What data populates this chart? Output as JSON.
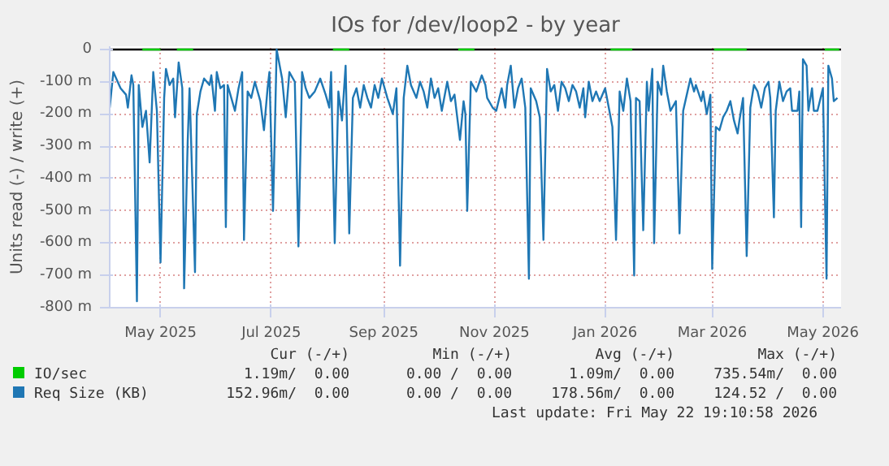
{
  "chart_data": {
    "type": "line",
    "title": "IOs for /dev/loop2 - by year",
    "ylabel": "Units read (-) / write (+)",
    "xlim": [
      "2025-04-03",
      "2026-05-11"
    ],
    "xticks": [
      {
        "value": "2025-05-01",
        "label": "May 2025"
      },
      {
        "value": "2025-07-01",
        "label": "Jul 2025"
      },
      {
        "value": "2025-09-01",
        "label": "Sep 2025"
      },
      {
        "value": "2025-11-01",
        "label": "Nov 2025"
      },
      {
        "value": "2026-01-01",
        "label": "Jan 2026"
      },
      {
        "value": "2026-03-01",
        "label": "Mar 2026"
      },
      {
        "value": "2026-05-01",
        "label": "May 2026"
      }
    ],
    "ylim": [
      -800,
      10
    ],
    "yticks": [
      {
        "value": 0,
        "label": "0"
      },
      {
        "value": -100,
        "label": "-100 m"
      },
      {
        "value": -200,
        "label": "-200 m"
      },
      {
        "value": -300,
        "label": "-300 m"
      },
      {
        "value": -400,
        "label": "-400 m"
      },
      {
        "value": -500,
        "label": "-500 m"
      },
      {
        "value": -600,
        "label": "-600 m"
      },
      {
        "value": -700,
        "label": "-700 m"
      },
      {
        "value": -800,
        "label": "-800 m"
      }
    ],
    "grid": true,
    "legend": "bottom",
    "ref_lines": [
      {
        "axis": "y",
        "value": 0,
        "color": "#000000"
      }
    ],
    "series": [
      {
        "name": "IO/sec",
        "color": "#00cc00",
        "x": [
          "2025-04-21",
          "2025-05-01",
          "2025-05-07",
          "2025-05-10",
          "2025-05-19",
          "2025-06-30",
          "2025-08-04",
          "2025-08-13",
          "2025-09-30",
          "2025-10-12",
          "2025-10-21",
          "2025-11-30",
          "2026-01-04",
          "2026-01-16",
          "2026-02-10",
          "2026-03-02",
          "2026-03-20",
          "2026-04-20",
          "2026-05-02",
          "2026-05-10"
        ],
        "values": [
          0,
          0,
          null,
          0,
          0,
          null,
          0,
          0,
          null,
          0,
          0,
          null,
          0,
          0,
          null,
          0,
          0,
          null,
          0,
          0
        ]
      },
      {
        "name": "Req Size (KB)",
        "color": "#1f77b4",
        "x": [
          "2025-04-03",
          "2025-04-05",
          "2025-04-09",
          "2025-04-12",
          "2025-04-13",
          "2025-04-15",
          "2025-04-16",
          "2025-04-18",
          "2025-04-19",
          "2025-04-21",
          "2025-04-23",
          "2025-04-25",
          "2025-04-27",
          "2025-04-29",
          "2025-05-01",
          "2025-05-03",
          "2025-05-04",
          "2025-05-06",
          "2025-05-08",
          "2025-05-09",
          "2025-05-11",
          "2025-05-13",
          "2025-05-14",
          "2025-05-16",
          "2025-05-17",
          "2025-05-20",
          "2025-05-21",
          "2025-05-23",
          "2025-05-25",
          "2025-05-28",
          "2025-05-29",
          "2025-05-31",
          "2025-06-01",
          "2025-06-03",
          "2025-06-05",
          "2025-06-06",
          "2025-06-07",
          "2025-06-09",
          "2025-06-11",
          "2025-06-13",
          "2025-06-15",
          "2025-06-16",
          "2025-06-18",
          "2025-06-20",
          "2025-06-22",
          "2025-06-25",
          "2025-06-27",
          "2025-06-29",
          "2025-06-30",
          "2025-07-02",
          "2025-07-04",
          "2025-07-07",
          "2025-07-09",
          "2025-07-11",
          "2025-07-14",
          "2025-07-16",
          "2025-07-18",
          "2025-07-20",
          "2025-07-22",
          "2025-07-25",
          "2025-07-28",
          "2025-07-31",
          "2025-08-02",
          "2025-08-03",
          "2025-08-05",
          "2025-08-07",
          "2025-08-09",
          "2025-08-11",
          "2025-08-13",
          "2025-08-15",
          "2025-08-17",
          "2025-08-19",
          "2025-08-21",
          "2025-08-23",
          "2025-08-25",
          "2025-08-27",
          "2025-08-29",
          "2025-08-31",
          "2025-09-03",
          "2025-09-06",
          "2025-09-08",
          "2025-09-10",
          "2025-09-12",
          "2025-09-14",
          "2025-09-16",
          "2025-09-19",
          "2025-09-21",
          "2025-09-23",
          "2025-09-25",
          "2025-09-27",
          "2025-09-29",
          "2025-10-01",
          "2025-10-03",
          "2025-10-06",
          "2025-10-08",
          "2025-10-10",
          "2025-10-13",
          "2025-10-15",
          "2025-10-16",
          "2025-10-17",
          "2025-10-19",
          "2025-10-22",
          "2025-10-25",
          "2025-10-27",
          "2025-10-28",
          "2025-10-31",
          "2025-11-02",
          "2025-11-05",
          "2025-11-07",
          "2025-11-08",
          "2025-11-10",
          "2025-11-12",
          "2025-11-14",
          "2025-11-16",
          "2025-11-18",
          "2025-11-20",
          "2025-11-21",
          "2025-11-24",
          "2025-11-26",
          "2025-11-28",
          "2025-11-30",
          "2025-12-02",
          "2025-12-04",
          "2025-12-06",
          "2025-12-08",
          "2025-12-10",
          "2025-12-12",
          "2025-12-14",
          "2025-12-16",
          "2025-12-18",
          "2025-12-20",
          "2025-12-21",
          "2025-12-23",
          "2025-12-25",
          "2025-12-27",
          "2025-12-29",
          "2026-01-01",
          "2026-01-03",
          "2026-01-05",
          "2026-01-07",
          "2026-01-09",
          "2026-01-11",
          "2026-01-13",
          "2026-01-15",
          "2026-01-17",
          "2026-01-18",
          "2026-01-20",
          "2026-01-22",
          "2026-01-24",
          "2026-01-25",
          "2026-01-27",
          "2026-01-28",
          "2026-01-30",
          "2026-02-01",
          "2026-02-02",
          "2026-02-04",
          "2026-02-06",
          "2026-02-09",
          "2026-02-11",
          "2026-02-13",
          "2026-02-15",
          "2026-02-17",
          "2026-02-19",
          "2026-02-20",
          "2026-02-23",
          "2026-02-24",
          "2026-02-26",
          "2026-02-28",
          "2026-03-01",
          "2026-03-03",
          "2026-03-05",
          "2026-03-07",
          "2026-03-09",
          "2026-03-11",
          "2026-03-13",
          "2026-03-15",
          "2026-03-16",
          "2026-03-18",
          "2026-03-20",
          "2026-03-22",
          "2026-03-24",
          "2026-03-26",
          "2026-03-28",
          "2026-03-30",
          "2026-04-01",
          "2026-04-02",
          "2026-04-04",
          "2026-04-05",
          "2026-04-07",
          "2026-04-09",
          "2026-04-11",
          "2026-04-13",
          "2026-04-14",
          "2026-04-17",
          "2026-04-18",
          "2026-04-19",
          "2026-04-20",
          "2026-04-22",
          "2026-04-23",
          "2026-04-25",
          "2026-04-26",
          "2026-04-28",
          "2026-05-01",
          "2026-05-03",
          "2026-05-04",
          "2026-05-06",
          "2026-05-07",
          "2026-05-09"
        ],
        "values": [
          -180,
          -70,
          -120,
          -140,
          -180,
          -80,
          -110,
          -780,
          -110,
          -240,
          -190,
          -350,
          -70,
          -190,
          -660,
          -150,
          -60,
          -110,
          -90,
          -210,
          -40,
          -120,
          -740,
          -280,
          -120,
          -690,
          -200,
          -130,
          -90,
          -110,
          -80,
          -190,
          -70,
          -120,
          -110,
          -550,
          -110,
          -150,
          -190,
          -120,
          -70,
          -590,
          -130,
          -150,
          -100,
          -160,
          -250,
          -120,
          -70,
          -500,
          0,
          -90,
          -210,
          -70,
          -100,
          -610,
          -70,
          -120,
          -150,
          -130,
          -90,
          -140,
          -180,
          -70,
          -600,
          -130,
          -220,
          -50,
          -570,
          -150,
          -120,
          -180,
          -110,
          -150,
          -180,
          -110,
          -150,
          -90,
          -150,
          -200,
          -120,
          -670,
          -150,
          -50,
          -110,
          -150,
          -100,
          -130,
          -180,
          -90,
          -150,
          -120,
          -190,
          -100,
          -160,
          -140,
          -280,
          -160,
          -200,
          -500,
          -100,
          -130,
          -80,
          -110,
          -150,
          -180,
          -190,
          -120,
          -180,
          -110,
          -50,
          -180,
          -120,
          -90,
          -180,
          -710,
          -120,
          -160,
          -210,
          -590,
          -60,
          -130,
          -110,
          -190,
          -100,
          -120,
          -160,
          -110,
          -130,
          -180,
          -120,
          -210,
          -100,
          -160,
          -130,
          -160,
          -120,
          -180,
          -240,
          -590,
          -130,
          -190,
          -90,
          -160,
          -700,
          -150,
          -160,
          -560,
          -100,
          -190,
          -60,
          -600,
          -100,
          -140,
          -50,
          -130,
          -190,
          -160,
          -570,
          -190,
          -140,
          -90,
          -130,
          -110,
          -160,
          -130,
          -200,
          -140,
          -680,
          -240,
          -250,
          -210,
          -190,
          -160,
          -220,
          -260,
          -220,
          -150,
          -640,
          -180,
          -110,
          -130,
          -180,
          -120,
          -100,
          -150,
          -520,
          -190,
          -100,
          -160,
          -130,
          -120,
          -190,
          -190,
          -130,
          -550,
          -30,
          -50,
          -190,
          -120,
          -190,
          -190,
          -120,
          -710,
          -50,
          -90,
          -160,
          -150
        ]
      }
    ],
    "annotations": [
      "Cur (-/+)",
      "Min (-/+)",
      "Avg (-/+)",
      "Max (-/+)",
      "1.19m/  0.00",
      "0.00 /  0.00",
      "1.09m/  0.00",
      "735.54m/  0.00",
      "152.96m/  0.00",
      "0.00 /  0.00",
      "178.56m/  0.00",
      "124.52 /  0.00",
      "Last update: Fri May 22 19:10:58 2026"
    ]
  }
}
